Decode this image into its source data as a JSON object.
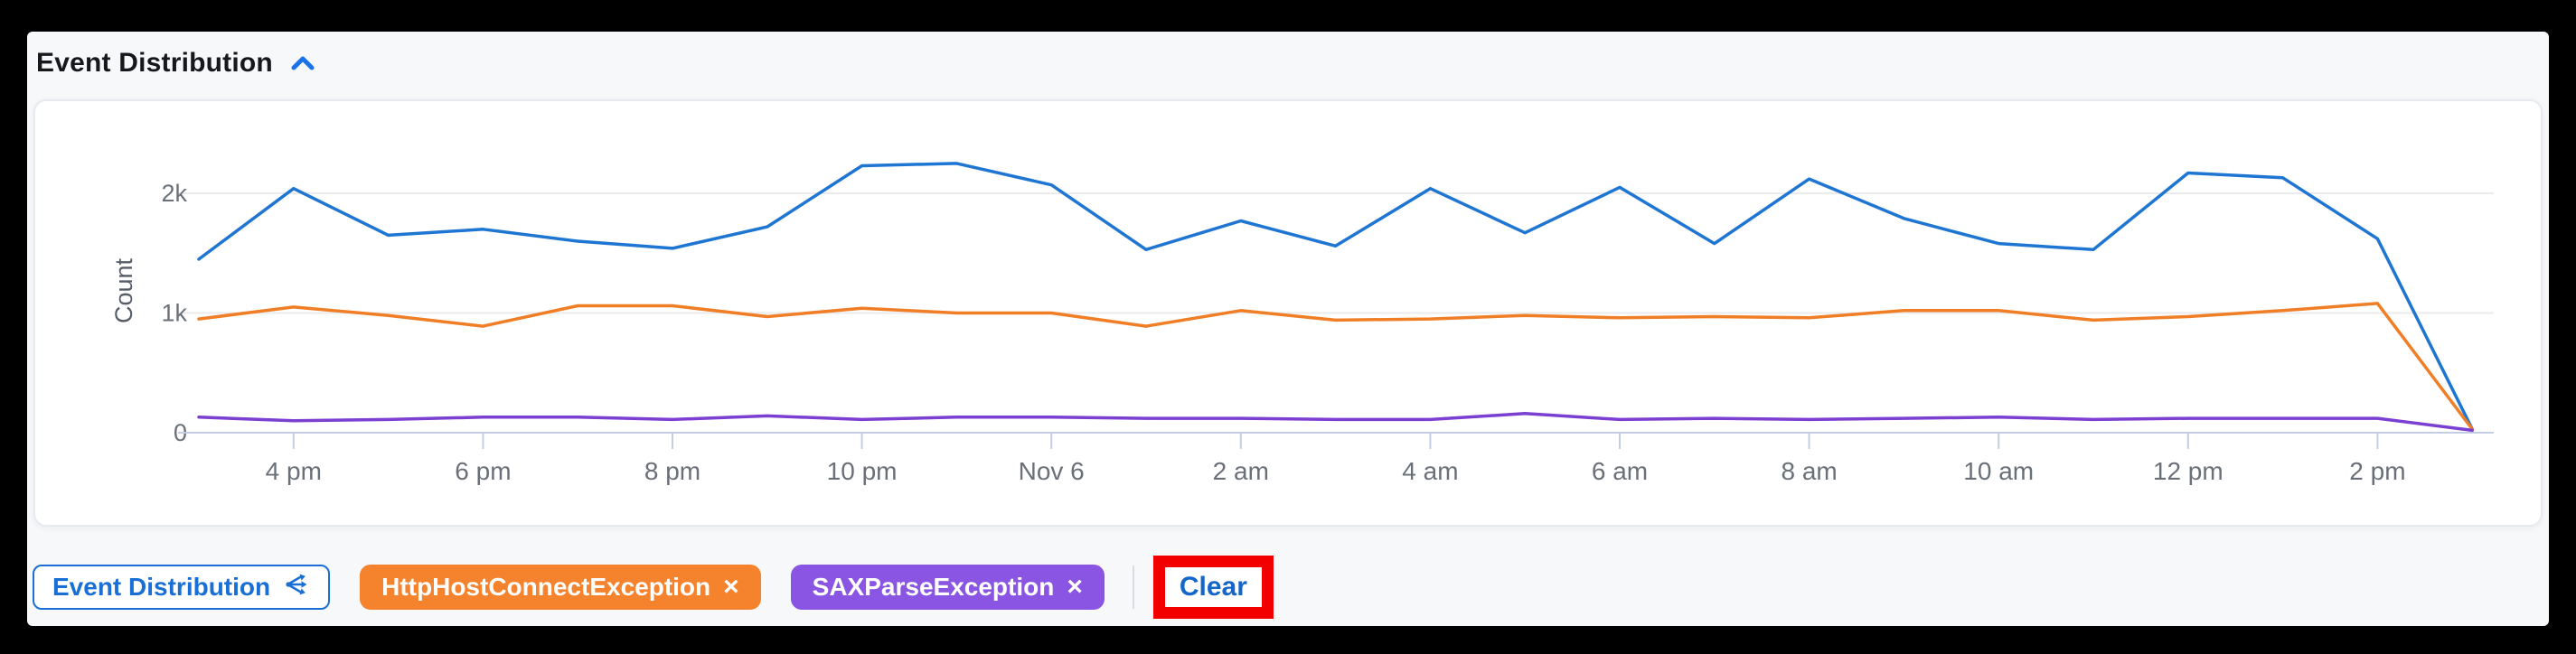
{
  "header": {
    "title": "Event Distribution",
    "collapse_icon": "chevron-up-icon",
    "accent_color": "#1a73e8"
  },
  "chart_data": {
    "type": "line",
    "title": "Event Distribution",
    "xlabel": "",
    "ylabel": "Count",
    "ylim": [
      0,
      2600
    ],
    "grid": "horizontal",
    "legend_position": "none",
    "x": [
      "3 pm",
      "4 pm",
      "5 pm",
      "6 pm",
      "7 pm",
      "8 pm",
      "9 pm",
      "10 pm",
      "11 pm",
      "Nov 6",
      "1 am",
      "2 am",
      "3 am",
      "4 am",
      "5 am",
      "6 am",
      "7 am",
      "8 am",
      "9 am",
      "10 am",
      "11 am",
      "12 pm",
      "1 pm",
      "2 pm",
      "3 pm"
    ],
    "x_ticks": [
      {
        "i": 1,
        "label": "4 pm"
      },
      {
        "i": 3,
        "label": "6 pm"
      },
      {
        "i": 5,
        "label": "8 pm"
      },
      {
        "i": 7,
        "label": "10 pm"
      },
      {
        "i": 9,
        "label": "Nov 6"
      },
      {
        "i": 11,
        "label": "2 am"
      },
      {
        "i": 13,
        "label": "4 am"
      },
      {
        "i": 15,
        "label": "6 am"
      },
      {
        "i": 17,
        "label": "8 am"
      },
      {
        "i": 19,
        "label": "10 am"
      },
      {
        "i": 21,
        "label": "12 pm"
      },
      {
        "i": 23,
        "label": "2 pm"
      }
    ],
    "y_ticks": [
      {
        "value": 0,
        "label": "0"
      },
      {
        "value": 1000,
        "label": "1k"
      },
      {
        "value": 2000,
        "label": "2k"
      }
    ],
    "series": [
      {
        "name": "",
        "color": "#1f76d2",
        "values": [
          1450,
          2040,
          1650,
          1700,
          1600,
          1540,
          1720,
          2230,
          2250,
          2070,
          1530,
          1770,
          1560,
          2040,
          1670,
          2050,
          1580,
          2120,
          1790,
          1580,
          1530,
          2170,
          2130,
          1620,
          30
        ]
      },
      {
        "name": "HttpHostConnectException",
        "color": "#f07e26",
        "values": [
          950,
          1050,
          980,
          890,
          1060,
          1060,
          970,
          1040,
          1000,
          1000,
          890,
          1020,
          940,
          950,
          980,
          960,
          970,
          960,
          1020,
          1020,
          940,
          970,
          1020,
          1080,
          30
        ]
      },
      {
        "name": "SAXParseException",
        "color": "#7b3fd1",
        "values": [
          130,
          100,
          110,
          130,
          130,
          110,
          140,
          110,
          130,
          130,
          120,
          120,
          110,
          110,
          160,
          110,
          120,
          110,
          120,
          130,
          110,
          120,
          120,
          120,
          20
        ]
      }
    ]
  },
  "footer": {
    "chart_button": {
      "label": "Event Distribution",
      "icon": "share-icon"
    },
    "filter_chips": [
      {
        "label": "HttpHostConnectException",
        "remove": "×",
        "color": "#f5822d"
      },
      {
        "label": "SAXParseException",
        "remove": "×",
        "color": "#8b55e3"
      }
    ],
    "clear_button": {
      "label": "Clear"
    },
    "annotation_highlight_color": "#f20000"
  }
}
